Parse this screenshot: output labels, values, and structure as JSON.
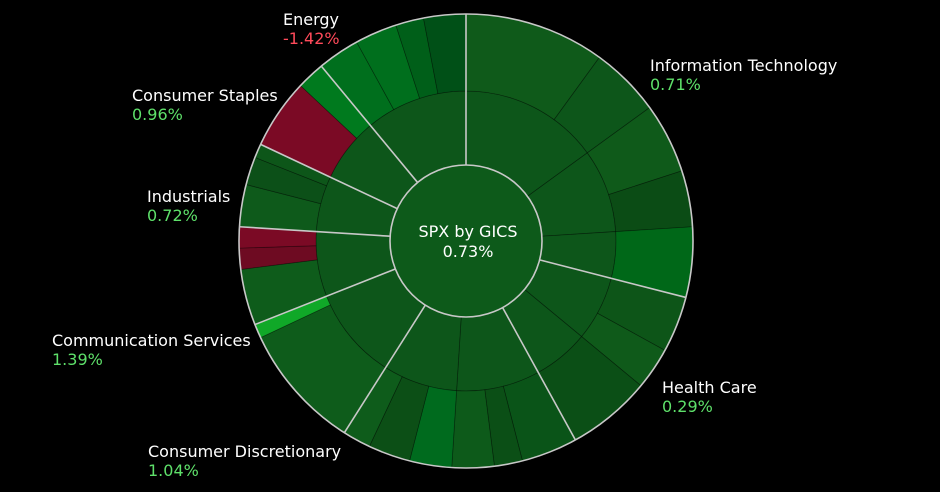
{
  "chart_data": {
    "type": "sunburst",
    "title": "SPX by GICS",
    "total_change": "0.73%",
    "sectors": [
      {
        "name": "Information Technology",
        "change": "0.71%",
        "direction": "up",
        "weight": 29.0,
        "industries": [
          {
            "weight": 15.0,
            "stocks": [
              10,
              5
            ]
          },
          {
            "weight": 9.0,
            "stocks": [
              5,
              4
            ]
          },
          {
            "weight": 5.0,
            "stocks": [
              5
            ]
          }
        ]
      },
      {
        "name": "Health Care",
        "change": "0.29%",
        "direction": "up",
        "weight": 13.0,
        "industries": [
          {
            "weight": 7.0,
            "stocks": [
              4,
              3
            ]
          },
          {
            "weight": 6.0,
            "stocks": [
              6
            ]
          }
        ]
      },
      {
        "name": "Consumer Discretionary",
        "change": "1.04%",
        "direction": "up",
        "weight": 17.0,
        "industries": [
          {
            "weight": 9.0,
            "stocks": [
              4,
              2,
              3
            ]
          },
          {
            "weight": 8.0,
            "stocks": [
              3,
              3,
              2
            ]
          }
        ]
      },
      {
        "name": "Communication Services",
        "change": "1.39%",
        "direction": "up",
        "weight": 10.0,
        "industries": [
          {
            "weight": 10.0,
            "stocks": [
              9,
              1
            ]
          }
        ]
      },
      {
        "name": "Industrials",
        "change": "0.72%",
        "direction": "up",
        "weight": 7.0,
        "industries": [
          {
            "weight": 7.0,
            "stocks": [
              4,
              1.5,
              1.5
            ]
          }
        ]
      },
      {
        "name": "Consumer Staples",
        "change": "0.96%",
        "direction": "up",
        "weight": 6.0,
        "industries": [
          {
            "weight": 6.0,
            "stocks": [
              3,
              2,
              1
            ]
          }
        ]
      },
      {
        "name": "Energy",
        "change": "-1.42%",
        "direction": "down",
        "weight": 7.0,
        "industries": [
          {
            "weight": 7.0,
            "stocks": [
              5,
              2
            ]
          }
        ]
      },
      {
        "name": "",
        "change": "",
        "direction": "up",
        "weight": 11.0,
        "industries": [
          {
            "weight": 11.0,
            "stocks": [
              3,
              3,
              2,
              3
            ]
          }
        ]
      }
    ],
    "stock_colors": [
      [
        "#0f5a1a",
        "#0d561a",
        "#0f5a1a",
        "#0b4c15",
        "#006818"
      ],
      [
        "#0d5518",
        "#0f5a1a",
        "#0b4f16"
      ],
      [
        "#0a5418",
        "#0b4f16",
        "#0d5a1a",
        "#006b1e",
        "#0c4f16",
        "#0e5c1b"
      ],
      [
        "#0e5c1b",
        "#10a828"
      ],
      [
        "#0e5c1b",
        "#6e0b22",
        "#7b0a25"
      ],
      [
        "#0e5a1b",
        "#0c5018",
        "#0d5619"
      ],
      [
        "#7b0a25",
        "#007a1e"
      ],
      [
        "#006f1d",
        "#006f1d",
        "#005f19",
        "#005017"
      ]
    ]
  },
  "colors": {
    "background": "#000000",
    "positive_text": "#5ee06a",
    "negative_text": "#ff4a5a",
    "divider": "#c8c8c8",
    "center": "#0d5a1a",
    "inner_ring": "#0d561a"
  }
}
